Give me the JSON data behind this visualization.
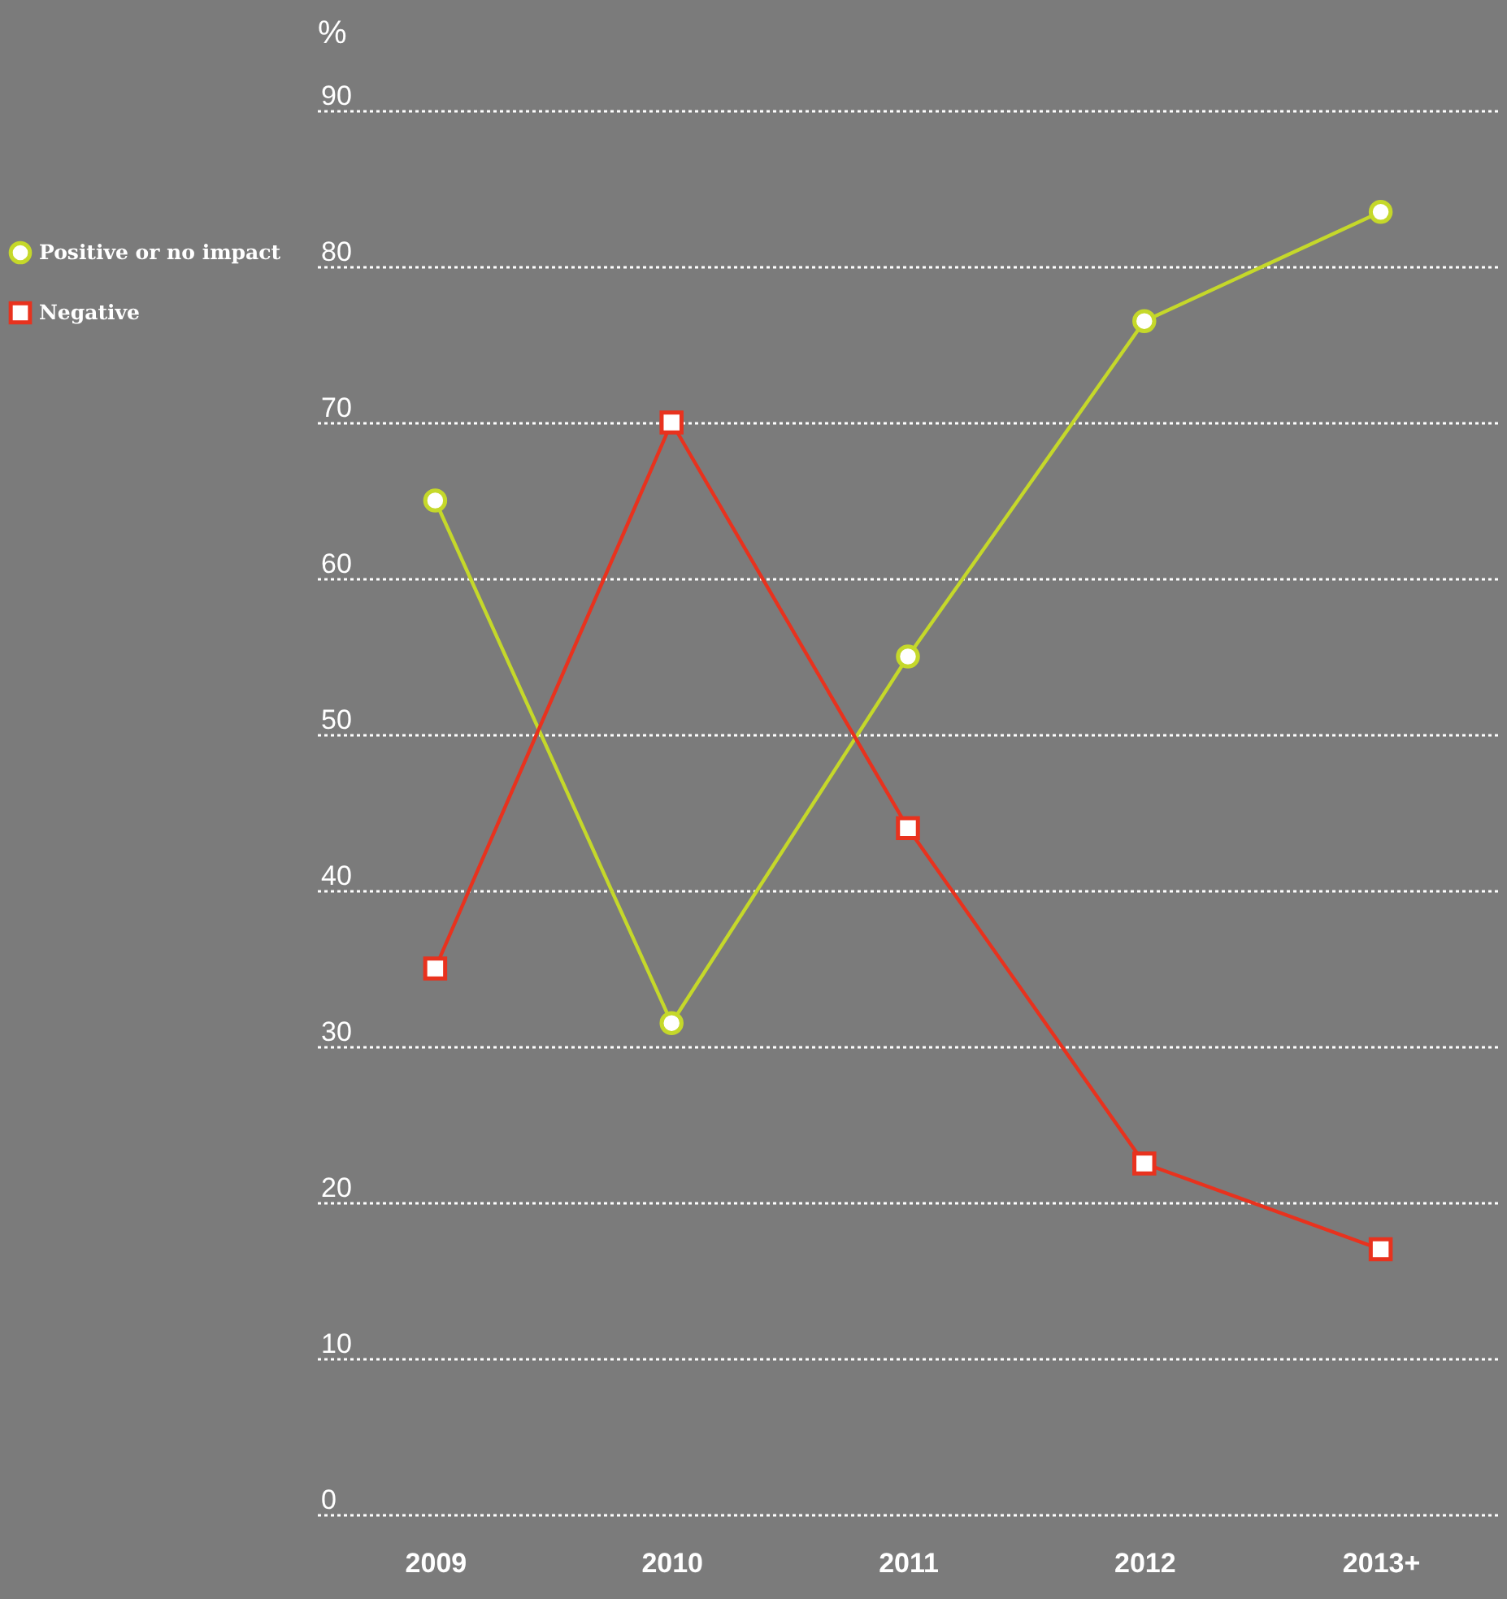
{
  "chart_data": {
    "type": "line",
    "ylabel": "%",
    "categories": [
      "2009",
      "2010",
      "2011",
      "2012",
      "2013+"
    ],
    "series": [
      {
        "name": "Positive or no impact",
        "color": "#c5d82a",
        "marker": "circle",
        "values": [
          65,
          31.5,
          55,
          76.5,
          83.5
        ]
      },
      {
        "name": "Negative",
        "color": "#e8321e",
        "marker": "square",
        "values": [
          35,
          70,
          44,
          22.5,
          17
        ]
      }
    ],
    "ylim": [
      0,
      90
    ],
    "yticks": [
      0,
      10,
      20,
      30,
      40,
      50,
      60,
      70,
      80,
      90
    ],
    "grid": "y",
    "legend": "top left",
    "line_style": "solid"
  }
}
